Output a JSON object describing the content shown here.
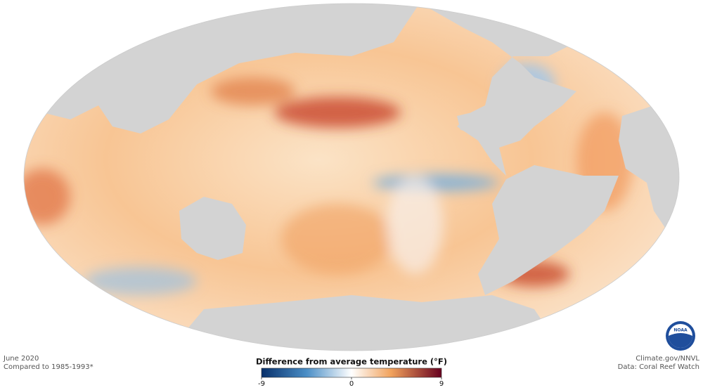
{
  "header": {
    "date": "June 2020",
    "baseline": "Compared to 1985-1993*"
  },
  "legend": {
    "title": "Difference from average temperature (°F)",
    "range": [
      -9,
      9
    ],
    "ticks": [
      -9,
      0,
      9
    ]
  },
  "credits": {
    "source": "Climate.gov/NNVL",
    "data": "Data: Coral Reef Watch",
    "logo": "NOAA"
  }
}
